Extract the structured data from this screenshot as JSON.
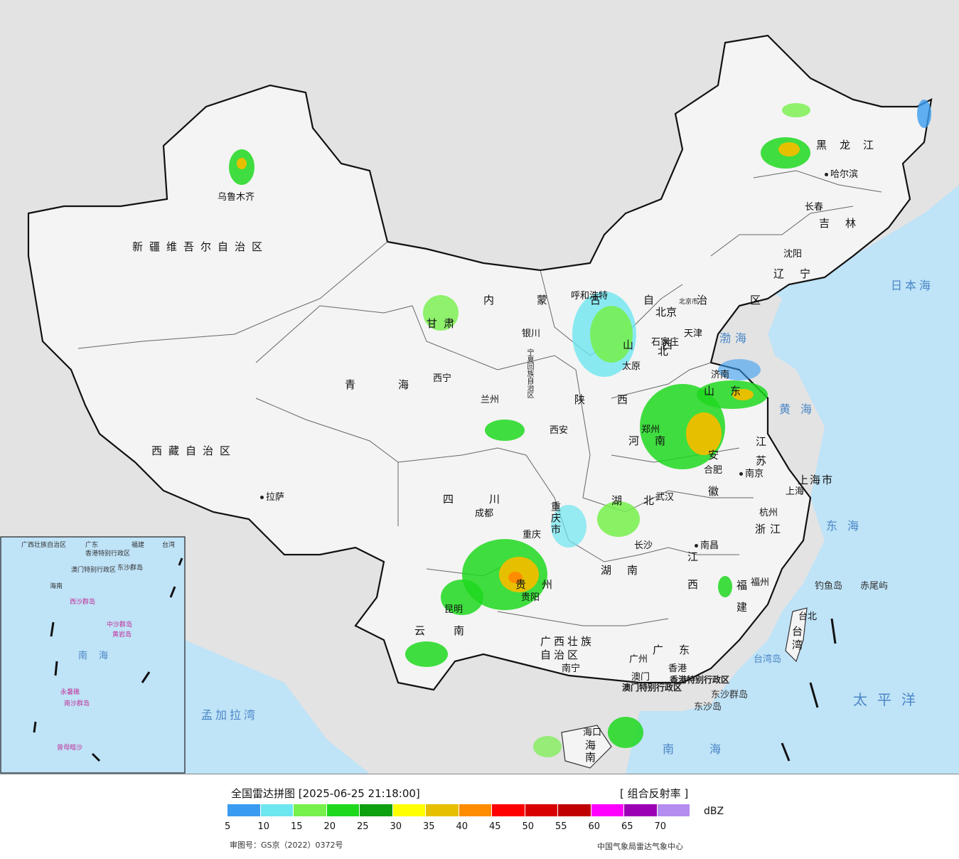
{
  "map": {
    "provinces": [
      {
        "id": "xinjiang",
        "label": "新疆维吾尔自治区"
      },
      {
        "id": "xizang",
        "label": "西藏自治区"
      },
      {
        "id": "qinghai",
        "label": "青海"
      },
      {
        "id": "gansu",
        "label": "甘肃"
      },
      {
        "id": "neimenggu",
        "label": "内蒙古自治区"
      },
      {
        "id": "heilongjiang",
        "label": "黑龙江"
      },
      {
        "id": "jilin",
        "label": "吉林"
      },
      {
        "id": "liaoning",
        "label": "辽宁"
      },
      {
        "id": "hebei",
        "label": "北"
      },
      {
        "id": "shanxi",
        "label": "山西"
      },
      {
        "id": "shaanxi",
        "label": "陕西"
      },
      {
        "id": "ningxia",
        "label": "宁夏回族自治区"
      },
      {
        "id": "sichuan",
        "label": "四川"
      },
      {
        "id": "chongqing",
        "label": "重庆市"
      },
      {
        "id": "guizhou",
        "label": "贵州"
      },
      {
        "id": "yunnan",
        "label": "云南"
      },
      {
        "id": "guangxi",
        "label": "广西壮族自治区"
      },
      {
        "id": "guangdong",
        "label": "广东"
      },
      {
        "id": "hunan",
        "label": "湖南"
      },
      {
        "id": "hubei",
        "label": "湖北"
      },
      {
        "id": "henan",
        "label": "河南"
      },
      {
        "id": "shandong",
        "label": "山东"
      },
      {
        "id": "jiangsu",
        "label": "江苏"
      },
      {
        "id": "anhui",
        "label": "安徽"
      },
      {
        "id": "zhejiang",
        "label": "浙江"
      },
      {
        "id": "jiangxi",
        "label": "江西"
      },
      {
        "id": "fujian",
        "label": "福建"
      },
      {
        "id": "taiwan",
        "label": "台湾"
      },
      {
        "id": "hainan",
        "label": "海南"
      },
      {
        "id": "shanghai",
        "label": "上海市"
      },
      {
        "id": "hk",
        "label": "香港特别行政区"
      },
      {
        "id": "macau",
        "label": "澳门特别行政区"
      }
    ],
    "cities": [
      {
        "id": "urumqi",
        "label": "乌鲁木齐"
      },
      {
        "id": "lhasa",
        "label": "拉萨"
      },
      {
        "id": "xining",
        "label": "西宁"
      },
      {
        "id": "lanzhou",
        "label": "兰州"
      },
      {
        "id": "yinchuan",
        "label": "银川"
      },
      {
        "id": "hohhot",
        "label": "呼和浩特"
      },
      {
        "id": "harbin",
        "label": "哈尔滨"
      },
      {
        "id": "changchun",
        "label": "长春"
      },
      {
        "id": "shenyang",
        "label": "沈阳"
      },
      {
        "id": "beijing",
        "label": "北京"
      },
      {
        "id": "beijing_small",
        "label": "北京市"
      },
      {
        "id": "tianjin",
        "label": "天津"
      },
      {
        "id": "shijiazhuang",
        "label": "石家庄"
      },
      {
        "id": "taiyuan",
        "label": "太原"
      },
      {
        "id": "jinan",
        "label": "济南"
      },
      {
        "id": "xian",
        "label": "西安"
      },
      {
        "id": "zhengzhou",
        "label": "郑州"
      },
      {
        "id": "hefei",
        "label": "合肥"
      },
      {
        "id": "nanjing",
        "label": "南京"
      },
      {
        "id": "shanghai_c",
        "label": "上海"
      },
      {
        "id": "hangzhou",
        "label": "杭州"
      },
      {
        "id": "wuhan",
        "label": "武汉"
      },
      {
        "id": "chengdu",
        "label": "成都"
      },
      {
        "id": "chongqing_c",
        "label": "重庆"
      },
      {
        "id": "changsha",
        "label": "长沙"
      },
      {
        "id": "nanchang",
        "label": "南昌"
      },
      {
        "id": "fuzhou",
        "label": "福州"
      },
      {
        "id": "taibei",
        "label": "台北"
      },
      {
        "id": "guiyang",
        "label": "贵阳"
      },
      {
        "id": "kunming",
        "label": "昆明"
      },
      {
        "id": "nanning",
        "label": "南宁"
      },
      {
        "id": "guangzhou",
        "label": "广州"
      },
      {
        "id": "hongkong",
        "label": "香港"
      },
      {
        "id": "aomen",
        "label": "澳门"
      },
      {
        "id": "haikou",
        "label": "海口"
      }
    ],
    "seas": [
      {
        "id": "bohai",
        "label": "渤海"
      },
      {
        "id": "huanghai",
        "label": "黄海"
      },
      {
        "id": "donghai",
        "label": "东海"
      },
      {
        "id": "nanhai",
        "label": "南海"
      },
      {
        "id": "taipingyang",
        "label": "太平洋"
      },
      {
        "id": "ribenhai",
        "label": "日本海"
      },
      {
        "id": "mengjialawan",
        "label": "孟加拉湾"
      },
      {
        "id": "taiwandao",
        "label": "台湾岛"
      },
      {
        "id": "diaoyudao",
        "label": "钓鱼岛"
      },
      {
        "id": "chiweiyu",
        "label": "赤尾屿"
      },
      {
        "id": "dongshaqundao",
        "label": "东沙群岛"
      },
      {
        "id": "dongshadao",
        "label": "东沙岛"
      }
    ],
    "inset": {
      "labels": [
        "广西壮族自治区",
        "广东",
        "福建",
        "台湾",
        "香港特别行政区",
        "澳门特别行政区",
        "东沙群岛",
        "海南",
        "西沙群岛",
        "中沙群岛",
        "黄岩岛",
        "南海",
        "永暑礁",
        "南沙群岛",
        "曾母暗沙"
      ]
    }
  },
  "legend": {
    "title": "全国雷达拼图 [2025-06-25 21:18:00]",
    "product": "[ 组合反射率 ]",
    "unit": "dBZ",
    "ticks": [
      "5",
      "10",
      "15",
      "20",
      "25",
      "30",
      "35",
      "40",
      "45",
      "50",
      "55",
      "60",
      "65",
      "70"
    ],
    "colors": [
      "#3a9cf0",
      "#6ee6f0",
      "#76f04a",
      "#1ed81e",
      "#0ea00e",
      "#ffff00",
      "#e6c000",
      "#ff8c00",
      "#ff0000",
      "#d80000",
      "#c00000",
      "#ff00ff",
      "#9b00b4",
      "#b48cf0"
    ],
    "approval": "审图号：GS京（2022）0372号",
    "source": "中国气象局雷达气象中心"
  }
}
